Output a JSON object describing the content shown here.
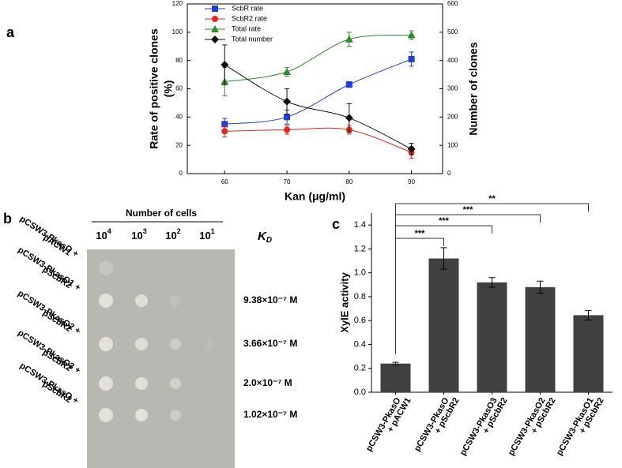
{
  "chart_data": [
    {
      "type": "line",
      "panel": "a",
      "x_label": "Kan (μg/ml)",
      "y_label": [
        "Rate of positive clones",
        "(%)"
      ],
      "y2_label": "Number of clones",
      "x": [
        60,
        70,
        80,
        90
      ],
      "xlim": [
        54,
        95
      ],
      "xticks": [
        60,
        70,
        80,
        90
      ],
      "ylim": [
        0,
        120
      ],
      "yticks": [
        0,
        20,
        40,
        60,
        80,
        100,
        120
      ],
      "y2lim": [
        0,
        600
      ],
      "y2ticks": [
        0,
        100,
        200,
        300,
        400,
        500,
        600
      ],
      "legend": "upper left",
      "series": [
        {
          "name": "ScbR rate",
          "color": "#1f3fd4",
          "marker": "square",
          "values": [
            35,
            40,
            63,
            81
          ],
          "errors": [
            4,
            5,
            2,
            5
          ]
        },
        {
          "name": "ScbR2 rate",
          "color": "#e8261f",
          "marker": "circle",
          "values": [
            30,
            31,
            31,
            15
          ],
          "errors": [
            4,
            3,
            3,
            4
          ]
        },
        {
          "name": "Total rate",
          "color": "#2d8a2d",
          "marker": "triangle",
          "values": [
            65,
            72,
            95,
            98
          ],
          "errors": [
            10,
            3,
            5,
            3
          ]
        },
        {
          "name": "Total number",
          "color": "#111111",
          "marker": "diamond",
          "axis": "y2",
          "values": [
            385,
            255,
            197,
            87
          ],
          "errors": [
            70,
            45,
            50,
            20
          ]
        }
      ]
    },
    {
      "type": "bar",
      "panel": "c",
      "y_label": "XylE activity",
      "color": "#404040",
      "categories": [
        [
          "pCSW3-PkasO",
          "+ pACW1"
        ],
        [
          "pCSW3-PkasO",
          "+ pScbR2"
        ],
        [
          "pCSW3-PkasO3",
          "+ pScbR2"
        ],
        [
          "pCSW3-PkasO2",
          "+ pScbR2"
        ],
        [
          "pCSW3-PkasO1",
          "+ pScbR2"
        ]
      ],
      "values": [
        0.24,
        1.12,
        0.92,
        0.88,
        0.645
      ],
      "errors": [
        0.01,
        0.09,
        0.04,
        0.05,
        0.04
      ],
      "ylim": [
        0,
        1.5
      ],
      "yticks": [
        {
          "value": 0,
          "label": "0.0"
        },
        0.2,
        0.4,
        0.6,
        0.8,
        {
          "value": 1,
          "label": "1.0"
        },
        1.2,
        1.4
      ],
      "significance": [
        "***",
        "***",
        "***",
        "**"
      ]
    }
  ],
  "panel_b": {
    "panel": "b",
    "column_header": "Number of cells",
    "columns": [
      {
        "base": "10",
        "exp": "4"
      },
      {
        "base": "10",
        "exp": "3"
      },
      {
        "base": "10",
        "exp": "2"
      },
      {
        "base": "10",
        "exp": "1"
      }
    ],
    "kd_header": {
      "base": "K",
      "sub": "D"
    },
    "rows": [
      {
        "label": [
          "pCSW3-PkasO +",
          "pACW1"
        ]
      },
      {
        "label": [
          "pCSW3-PkasO1 +",
          "pScbR2"
        ],
        "kd": "9.38×10⁻⁷ M"
      },
      {
        "label": [
          "pCSW3-PkasO2 +",
          "pScbR2"
        ],
        "kd": "3.66×10⁻⁷ M"
      },
      {
        "label": [
          "pCSW3-PkasO3 +",
          "pScbR2"
        ],
        "kd": "2.0×10⁻⁷ M"
      },
      {
        "label": [
          "pCSW3-PkasO +",
          "pScbR2"
        ],
        "kd": "1.02×10⁻⁷ M"
      }
    ]
  }
}
